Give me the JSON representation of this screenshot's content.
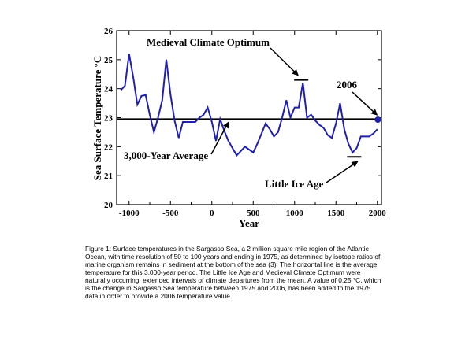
{
  "chart_data": {
    "type": "line",
    "xlabel": "Year",
    "ylabel": "Sea Surface Temperature °C",
    "xlim": [
      -1150,
      2050
    ],
    "ylim": [
      20,
      26
    ],
    "xticks": [
      -1000,
      -500,
      0,
      500,
      1000,
      1500,
      2000
    ],
    "yticks": [
      20,
      21,
      22,
      23,
      24,
      25,
      26
    ],
    "grid": false,
    "series": [
      {
        "color": "#1f1fb0",
        "x": [
          -1100,
          -1050,
          -1000,
          -950,
          -900,
          -850,
          -800,
          -750,
          -700,
          -650,
          -600,
          -550,
          -500,
          -450,
          -400,
          -350,
          -300,
          -250,
          -200,
          -150,
          -100,
          -50,
          0,
          50,
          100,
          150,
          200,
          250,
          300,
          350,
          400,
          450,
          500,
          550,
          600,
          650,
          700,
          750,
          800,
          850,
          900,
          950,
          1000,
          1050,
          1100,
          1150,
          1200,
          1250,
          1300,
          1350,
          1400,
          1450,
          1500,
          1550,
          1600,
          1650,
          1700,
          1750,
          1800,
          1850,
          1900,
          1950,
          2000
        ],
        "y": [
          23.95,
          24.1,
          25.2,
          24.4,
          23.45,
          23.75,
          23.78,
          23.1,
          22.5,
          23.0,
          23.6,
          25.0,
          23.8,
          22.9,
          22.3,
          22.85,
          22.85,
          22.85,
          22.85,
          23.0,
          23.1,
          23.35,
          22.85,
          22.2,
          22.95,
          22.55,
          22.2,
          21.95,
          21.7,
          21.85,
          22.0,
          21.9,
          21.8,
          22.1,
          22.45,
          22.8,
          22.6,
          22.35,
          22.5,
          23.0,
          23.6,
          23.0,
          23.35,
          23.35,
          24.2,
          23.0,
          23.1,
          22.9,
          22.75,
          22.65,
          22.4,
          22.3,
          22.8,
          23.5,
          22.6,
          22.1,
          21.8,
          21.95,
          22.35,
          22.35,
          22.35,
          22.45,
          22.6
        ]
      }
    ],
    "average": 22.95,
    "point_2006": {
      "x": 2006,
      "y": 22.93
    },
    "annotations": [
      {
        "text": "Medieval Climate Optimum",
        "arrow_to": {
          "x": 1080,
          "y": 24.3
        }
      },
      {
        "text": "2006",
        "arrow_to": {
          "x": 2006,
          "y": 22.93
        }
      },
      {
        "text": "3,000-Year Average",
        "arrow_to": {
          "x": 200,
          "y": 22.95
        }
      },
      {
        "text": "Little Ice Age",
        "arrow_to": {
          "x": 1790,
          "y": 21.65
        }
      }
    ],
    "marker_bars": [
      {
        "x": 1080,
        "y": 24.3
      },
      {
        "x": 1720,
        "y": 21.65
      }
    ]
  },
  "caption": "Figure 1: Surface temperatures in the Sargasso Sea, a 2 million square mile region of the Atlantic Ocean, with time resolution of 50 to 100 years and ending in 1975, as determined by isotope ratios of marine organism remains in sediment at the bottom of the sea (3). The horizontal line is the average temperature for this 3,000-year period. The Little Ice Age and Medieval Climate Optimum were naturally occurring, extended intervals of climate departures from the mean. A value of 0.25 °C, which is the change in Sargasso Sea temperature between 1975 and 2006, has been added to the 1975 data in order to provide a 2006 temperature value."
}
